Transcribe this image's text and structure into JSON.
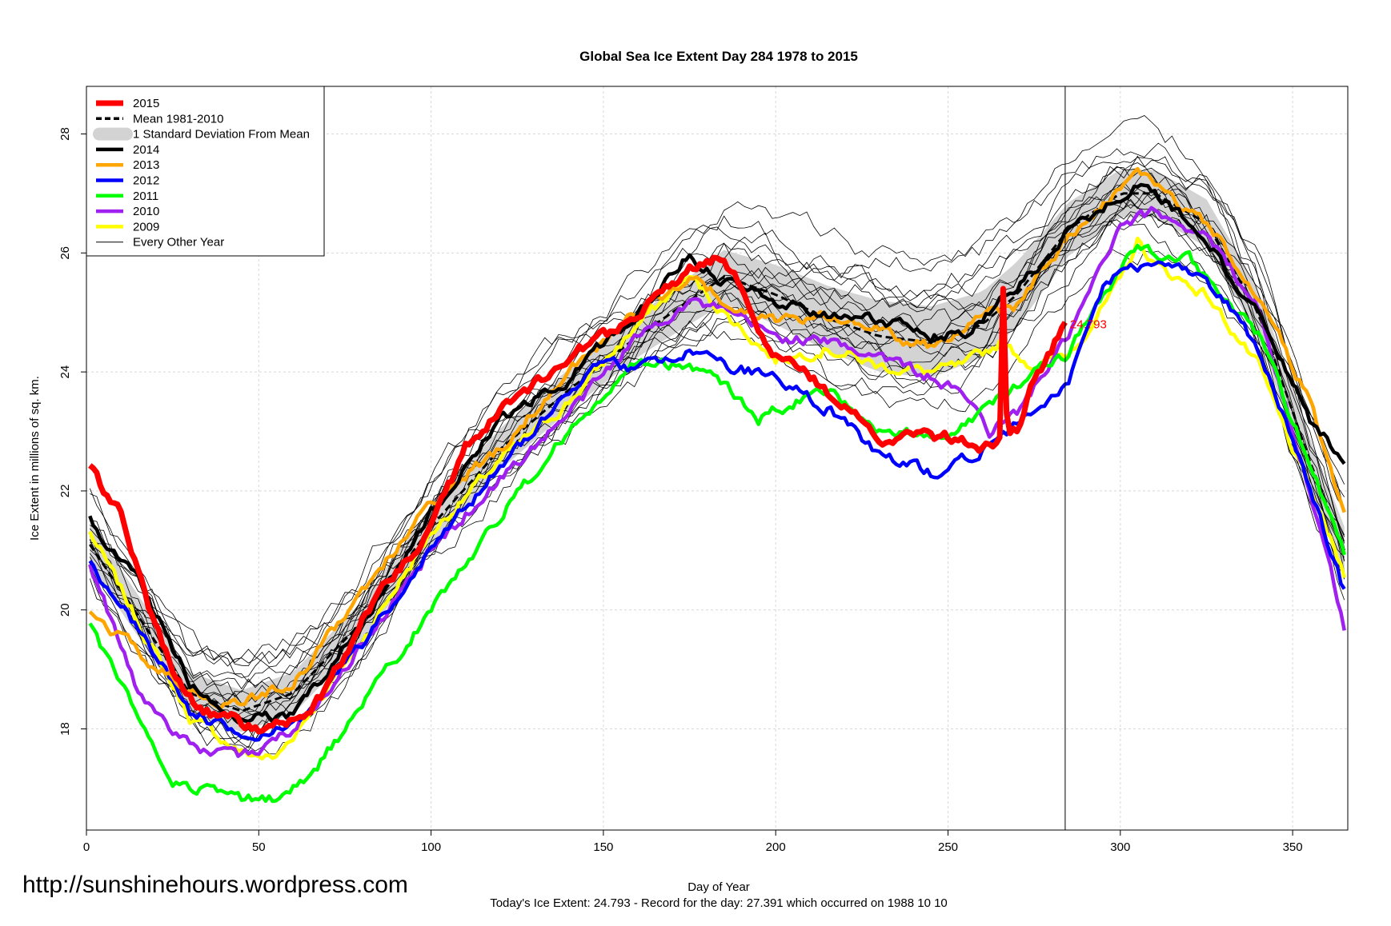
{
  "chart_data": {
    "type": "line",
    "title": "Global Sea Ice Extent Day 284 1978 to 2015",
    "xlabel": "Day of Year",
    "ylabel": "Ice Extent in millions of sq. km.",
    "xlim": [
      0,
      366
    ],
    "ylim": [
      16.3,
      28.8
    ],
    "x_ticks": [
      0,
      50,
      100,
      150,
      200,
      250,
      300,
      350
    ],
    "y_ticks": [
      18,
      20,
      22,
      24,
      26,
      28
    ],
    "grid": true,
    "legend_position": "top-left",
    "current_day": 284,
    "current_label": "24.793",
    "legend": [
      {
        "label": "2015",
        "color": "#ff0000",
        "style": "thick"
      },
      {
        "label": "Mean 1981-2010",
        "color": "#000000",
        "style": "dashed"
      },
      {
        "label": "1 Standard Deviation From Mean",
        "color": "#d3d3d3",
        "style": "band"
      },
      {
        "label": "2014",
        "color": "#000000",
        "style": "medium"
      },
      {
        "label": "2013",
        "color": "#ffa500",
        "style": "medium"
      },
      {
        "label": "2012",
        "color": "#0000ff",
        "style": "medium"
      },
      {
        "label": "2011",
        "color": "#00ff00",
        "style": "medium"
      },
      {
        "label": "2010",
        "color": "#a020f0",
        "style": "medium"
      },
      {
        "label": "2009",
        "color": "#ffff00",
        "style": "medium"
      },
      {
        "label": "Every Other Year",
        "color": "#000000",
        "style": "thin"
      }
    ],
    "x": [
      1,
      15,
      30,
      45,
      60,
      80,
      100,
      120,
      140,
      160,
      175,
      185,
      200,
      215,
      230,
      245,
      260,
      270,
      285,
      300,
      310,
      325,
      340,
      355,
      365
    ],
    "mean": [
      21.1,
      19.9,
      18.6,
      18.3,
      18.6,
      19.8,
      21.4,
      22.7,
      23.7,
      24.6,
      25.2,
      25.6,
      25.3,
      24.9,
      24.6,
      24.5,
      24.8,
      25.3,
      26.4,
      27.0,
      27.0,
      26.5,
      25.0,
      22.5,
      21.0
    ],
    "sd": [
      0.35,
      0.35,
      0.35,
      0.35,
      0.35,
      0.35,
      0.35,
      0.35,
      0.35,
      0.35,
      0.4,
      0.45,
      0.5,
      0.55,
      0.6,
      0.6,
      0.55,
      0.55,
      0.45,
      0.4,
      0.4,
      0.4,
      0.4,
      0.4,
      0.4
    ],
    "series": [
      {
        "name": "2015",
        "color": "#ff0000",
        "width": 7,
        "x": [
          1,
          5,
          10,
          15,
          20,
          25,
          30,
          35,
          40,
          45,
          50,
          55,
          60,
          65,
          70,
          80,
          90,
          100,
          110,
          120,
          130,
          140,
          150,
          160,
          170,
          180,
          185,
          190,
          195,
          200,
          210,
          220,
          230,
          240,
          250,
          255,
          260,
          262,
          265,
          266,
          267,
          268,
          270,
          275,
          280,
          284
        ],
        "values": [
          22.4,
          22.0,
          21.6,
          20.7,
          19.7,
          19.0,
          18.5,
          18.3,
          18.2,
          18.1,
          18.0,
          18.1,
          18.1,
          18.3,
          18.7,
          19.8,
          20.6,
          21.4,
          22.7,
          23.4,
          23.8,
          24.3,
          24.6,
          24.9,
          25.5,
          25.9,
          25.9,
          25.4,
          24.8,
          24.3,
          23.9,
          23.4,
          22.9,
          22.9,
          22.9,
          22.8,
          22.7,
          22.8,
          22.9,
          25.4,
          23.3,
          23.0,
          23.0,
          23.9,
          24.4,
          24.8
        ]
      },
      {
        "name": "2014",
        "color": "#000000",
        "width": 4.5,
        "x": [
          1,
          15,
          30,
          45,
          60,
          80,
          100,
          120,
          140,
          160,
          175,
          185,
          200,
          215,
          230,
          245,
          255,
          270,
          285,
          300,
          305,
          310,
          325,
          340,
          355,
          365
        ],
        "values": [
          21.5,
          20.5,
          18.8,
          18.2,
          18.2,
          19.8,
          21.6,
          23.2,
          23.9,
          25.0,
          26.0,
          25.5,
          25.2,
          25.0,
          24.9,
          24.6,
          24.7,
          25.4,
          26.4,
          27.0,
          27.2,
          27.0,
          26.2,
          25.0,
          23.2,
          22.5
        ]
      },
      {
        "name": "2013",
        "color": "#ffa500",
        "width": 4.5,
        "x": [
          1,
          15,
          30,
          45,
          60,
          80,
          100,
          120,
          140,
          160,
          175,
          185,
          200,
          215,
          230,
          245,
          260,
          270,
          285,
          300,
          305,
          310,
          325,
          340,
          355,
          365
        ],
        "values": [
          20.0,
          19.3,
          18.6,
          18.4,
          18.8,
          20.3,
          21.8,
          22.7,
          24.0,
          25.0,
          25.6,
          25.2,
          24.9,
          24.9,
          24.7,
          24.4,
          24.9,
          25.1,
          26.3,
          27.1,
          27.4,
          27.1,
          26.5,
          25.3,
          23.5,
          21.6
        ]
      },
      {
        "name": "2012",
        "color": "#0000ff",
        "width": 4.5,
        "x": [
          1,
          15,
          30,
          45,
          60,
          80,
          100,
          120,
          140,
          150,
          160,
          175,
          185,
          200,
          215,
          230,
          245,
          260,
          270,
          285,
          295,
          310,
          325,
          340,
          355,
          365
        ],
        "values": [
          20.8,
          19.7,
          18.3,
          17.9,
          18.0,
          19.4,
          21.0,
          22.4,
          23.7,
          24.2,
          24.0,
          24.4,
          24.1,
          23.9,
          23.4,
          22.6,
          22.3,
          22.7,
          23.1,
          23.8,
          25.5,
          25.9,
          25.6,
          24.4,
          22.1,
          20.3
        ]
      },
      {
        "name": "2011",
        "color": "#00ff00",
        "width": 4.5,
        "x": [
          1,
          15,
          25,
          35,
          45,
          55,
          65,
          80,
          100,
          120,
          140,
          160,
          175,
          185,
          195,
          205,
          215,
          230,
          245,
          260,
          270,
          285,
          295,
          305,
          320,
          340,
          355,
          365
        ],
        "values": [
          19.7,
          18.2,
          17.1,
          17.0,
          16.8,
          16.8,
          17.2,
          18.4,
          20.0,
          21.6,
          23.0,
          24.1,
          24.1,
          23.8,
          23.2,
          23.5,
          23.7,
          23.0,
          22.9,
          23.3,
          23.8,
          24.3,
          25.3,
          26.1,
          25.9,
          24.6,
          22.5,
          20.9
        ]
      },
      {
        "name": "2010",
        "color": "#a020f0",
        "width": 4.5,
        "x": [
          1,
          15,
          30,
          45,
          60,
          80,
          100,
          120,
          140,
          160,
          175,
          185,
          200,
          215,
          230,
          245,
          255,
          262,
          270,
          285,
          300,
          310,
          325,
          340,
          355,
          365
        ],
        "values": [
          20.8,
          18.6,
          17.7,
          17.5,
          18.0,
          19.4,
          21.0,
          22.2,
          23.3,
          24.6,
          25.2,
          25.0,
          24.6,
          24.5,
          24.3,
          23.9,
          23.6,
          23.0,
          23.3,
          24.6,
          26.4,
          26.7,
          26.3,
          25.1,
          22.0,
          19.7
        ]
      },
      {
        "name": "2009",
        "color": "#ffff00",
        "width": 4.5,
        "x": [
          1,
          15,
          30,
          45,
          55,
          60,
          80,
          100,
          120,
          140,
          160,
          175,
          185,
          200,
          215,
          230,
          245,
          255,
          265,
          275,
          285,
          300,
          305,
          310,
          325,
          340,
          355,
          365
        ],
        "values": [
          21.3,
          19.8,
          18.2,
          17.6,
          17.5,
          17.9,
          19.5,
          21.3,
          22.5,
          23.5,
          24.8,
          25.6,
          25.0,
          24.2,
          24.4,
          24.1,
          24.0,
          24.1,
          24.5,
          24.1,
          24.3,
          25.5,
          26.2,
          25.8,
          25.3,
          24.1,
          22.0,
          20.6
        ]
      }
    ]
  },
  "annotations": {
    "url": "http://sunshinehours.wordpress.com",
    "footer": "Today's Ice Extent: 24.793  - Record for the day: 27.391 which occurred on 1988 10 10"
  }
}
